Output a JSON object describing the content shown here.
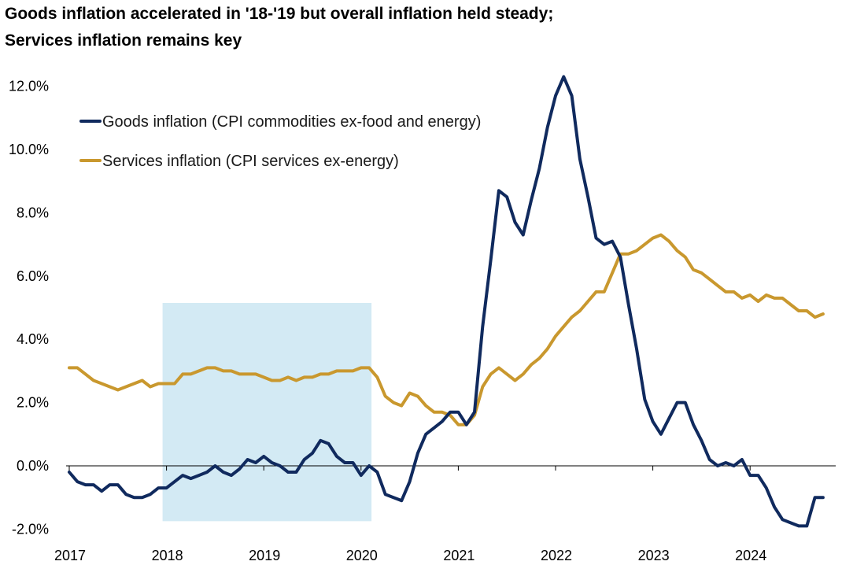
{
  "title_lines": [
    "Goods inflation accelerated in '18-'19 but overall inflation held steady;",
    "Services inflation remains key"
  ],
  "chart_data": {
    "type": "line",
    "title": "Goods inflation accelerated in '18-'19 but overall inflation held steady; Services inflation remains key",
    "xlabel": "",
    "ylabel": "",
    "x_ticks": [
      "2017",
      "2018",
      "2019",
      "2020",
      "2021",
      "2022",
      "2023",
      "2024"
    ],
    "y_ticks": [
      "12.0%",
      "10.0%",
      "8.0%",
      "6.0%",
      "4.0%",
      "2.0%",
      "0.0%",
      "-2.0%"
    ],
    "ylim": [
      -2,
      12
    ],
    "xlim": [
      "2017-01",
      "2024-10"
    ],
    "legend_position": "top-left",
    "grid": false,
    "highlight": {
      "from": "2018-01",
      "to": "2020-02",
      "ymin": -1.75,
      "ymax": 5.15,
      "color": "#d3eaf4"
    },
    "series": [
      {
        "name": "Goods inflation (CPI commodities ex-food and energy)",
        "color": "#102a5e",
        "points": [
          [
            "2017-01",
            -0.2
          ],
          [
            "2017-02",
            -0.5
          ],
          [
            "2017-03",
            -0.6
          ],
          [
            "2017-04",
            -0.6
          ],
          [
            "2017-05",
            -0.8
          ],
          [
            "2017-06",
            -0.6
          ],
          [
            "2017-07",
            -0.6
          ],
          [
            "2017-08",
            -0.9
          ],
          [
            "2017-09",
            -1.0
          ],
          [
            "2017-10",
            -1.0
          ],
          [
            "2017-11",
            -0.9
          ],
          [
            "2017-12",
            -0.7
          ],
          [
            "2018-01",
            -0.7
          ],
          [
            "2018-02",
            -0.5
          ],
          [
            "2018-03",
            -0.3
          ],
          [
            "2018-04",
            -0.4
          ],
          [
            "2018-05",
            -0.3
          ],
          [
            "2018-06",
            -0.2
          ],
          [
            "2018-07",
            0.0
          ],
          [
            "2018-08",
            -0.2
          ],
          [
            "2018-09",
            -0.3
          ],
          [
            "2018-10",
            -0.1
          ],
          [
            "2018-11",
            0.2
          ],
          [
            "2018-12",
            0.1
          ],
          [
            "2019-01",
            0.3
          ],
          [
            "2019-02",
            0.1
          ],
          [
            "2019-03",
            0.0
          ],
          [
            "2019-04",
            -0.2
          ],
          [
            "2019-05",
            -0.2
          ],
          [
            "2019-06",
            0.2
          ],
          [
            "2019-07",
            0.4
          ],
          [
            "2019-08",
            0.8
          ],
          [
            "2019-09",
            0.7
          ],
          [
            "2019-10",
            0.3
          ],
          [
            "2019-11",
            0.1
          ],
          [
            "2019-12",
            0.1
          ],
          [
            "2020-01",
            -0.3
          ],
          [
            "2020-02",
            0.0
          ],
          [
            "2020-03",
            -0.2
          ],
          [
            "2020-04",
            -0.9
          ],
          [
            "2020-05",
            -1.0
          ],
          [
            "2020-06",
            -1.1
          ],
          [
            "2020-07",
            -0.5
          ],
          [
            "2020-08",
            0.4
          ],
          [
            "2020-09",
            1.0
          ],
          [
            "2020-10",
            1.2
          ],
          [
            "2020-11",
            1.4
          ],
          [
            "2020-12",
            1.7
          ],
          [
            "2021-01",
            1.7
          ],
          [
            "2021-02",
            1.3
          ],
          [
            "2021-03",
            1.7
          ],
          [
            "2021-04",
            4.4
          ],
          [
            "2021-05",
            6.5
          ],
          [
            "2021-06",
            8.7
          ],
          [
            "2021-07",
            8.5
          ],
          [
            "2021-08",
            7.7
          ],
          [
            "2021-09",
            7.3
          ],
          [
            "2021-10",
            8.4
          ],
          [
            "2021-11",
            9.4
          ],
          [
            "2021-12",
            10.7
          ],
          [
            "2022-01",
            11.7
          ],
          [
            "2022-02",
            12.3
          ],
          [
            "2022-03",
            11.7
          ],
          [
            "2022-04",
            9.7
          ],
          [
            "2022-05",
            8.5
          ],
          [
            "2022-06",
            7.2
          ],
          [
            "2022-07",
            7.0
          ],
          [
            "2022-08",
            7.1
          ],
          [
            "2022-09",
            6.6
          ],
          [
            "2022-10",
            5.1
          ],
          [
            "2022-11",
            3.7
          ],
          [
            "2022-12",
            2.1
          ],
          [
            "2023-01",
            1.4
          ],
          [
            "2023-02",
            1.0
          ],
          [
            "2023-03",
            1.5
          ],
          [
            "2023-04",
            2.0
          ],
          [
            "2023-05",
            2.0
          ],
          [
            "2023-06",
            1.3
          ],
          [
            "2023-07",
            0.8
          ],
          [
            "2023-08",
            0.2
          ],
          [
            "2023-09",
            0.0
          ],
          [
            "2023-10",
            0.1
          ],
          [
            "2023-11",
            0.0
          ],
          [
            "2023-12",
            0.2
          ],
          [
            "2024-01",
            -0.3
          ],
          [
            "2024-02",
            -0.3
          ],
          [
            "2024-03",
            -0.7
          ],
          [
            "2024-04",
            -1.3
          ],
          [
            "2024-05",
            -1.7
          ],
          [
            "2024-06",
            -1.8
          ],
          [
            "2024-07",
            -1.9
          ],
          [
            "2024-08",
            -1.9
          ],
          [
            "2024-09",
            -1.0
          ],
          [
            "2024-10",
            -1.0
          ]
        ]
      },
      {
        "name": "Services inflation (CPI services ex-energy)",
        "color": "#c9982e",
        "points": [
          [
            "2017-01",
            3.1
          ],
          [
            "2017-02",
            3.1
          ],
          [
            "2017-03",
            2.9
          ],
          [
            "2017-04",
            2.7
          ],
          [
            "2017-05",
            2.6
          ],
          [
            "2017-06",
            2.5
          ],
          [
            "2017-07",
            2.4
          ],
          [
            "2017-08",
            2.5
          ],
          [
            "2017-09",
            2.6
          ],
          [
            "2017-10",
            2.7
          ],
          [
            "2017-11",
            2.5
          ],
          [
            "2017-12",
            2.6
          ],
          [
            "2018-01",
            2.6
          ],
          [
            "2018-02",
            2.6
          ],
          [
            "2018-03",
            2.9
          ],
          [
            "2018-04",
            2.9
          ],
          [
            "2018-05",
            3.0
          ],
          [
            "2018-06",
            3.1
          ],
          [
            "2018-07",
            3.1
          ],
          [
            "2018-08",
            3.0
          ],
          [
            "2018-09",
            3.0
          ],
          [
            "2018-10",
            2.9
          ],
          [
            "2018-11",
            2.9
          ],
          [
            "2018-12",
            2.9
          ],
          [
            "2019-01",
            2.8
          ],
          [
            "2019-02",
            2.7
          ],
          [
            "2019-03",
            2.7
          ],
          [
            "2019-04",
            2.8
          ],
          [
            "2019-05",
            2.7
          ],
          [
            "2019-06",
            2.8
          ],
          [
            "2019-07",
            2.8
          ],
          [
            "2019-08",
            2.9
          ],
          [
            "2019-09",
            2.9
          ],
          [
            "2019-10",
            3.0
          ],
          [
            "2019-11",
            3.0
          ],
          [
            "2019-12",
            3.0
          ],
          [
            "2020-01",
            3.1
          ],
          [
            "2020-02",
            3.1
          ],
          [
            "2020-03",
            2.8
          ],
          [
            "2020-04",
            2.2
          ],
          [
            "2020-05",
            2.0
          ],
          [
            "2020-06",
            1.9
          ],
          [
            "2020-07",
            2.3
          ],
          [
            "2020-08",
            2.2
          ],
          [
            "2020-09",
            1.9
          ],
          [
            "2020-10",
            1.7
          ],
          [
            "2020-11",
            1.7
          ],
          [
            "2020-12",
            1.6
          ],
          [
            "2021-01",
            1.3
          ],
          [
            "2021-02",
            1.3
          ],
          [
            "2021-03",
            1.6
          ],
          [
            "2021-04",
            2.5
          ],
          [
            "2021-05",
            2.9
          ],
          [
            "2021-06",
            3.1
          ],
          [
            "2021-07",
            2.9
          ],
          [
            "2021-08",
            2.7
          ],
          [
            "2021-09",
            2.9
          ],
          [
            "2021-10",
            3.2
          ],
          [
            "2021-11",
            3.4
          ],
          [
            "2021-12",
            3.7
          ],
          [
            "2022-01",
            4.1
          ],
          [
            "2022-02",
            4.4
          ],
          [
            "2022-03",
            4.7
          ],
          [
            "2022-04",
            4.9
          ],
          [
            "2022-05",
            5.2
          ],
          [
            "2022-06",
            5.5
          ],
          [
            "2022-07",
            5.5
          ],
          [
            "2022-08",
            6.1
          ],
          [
            "2022-09",
            6.7
          ],
          [
            "2022-10",
            6.7
          ],
          [
            "2022-11",
            6.8
          ],
          [
            "2022-12",
            7.0
          ],
          [
            "2023-01",
            7.2
          ],
          [
            "2023-02",
            7.3
          ],
          [
            "2023-03",
            7.1
          ],
          [
            "2023-04",
            6.8
          ],
          [
            "2023-05",
            6.6
          ],
          [
            "2023-06",
            6.2
          ],
          [
            "2023-07",
            6.1
          ],
          [
            "2023-08",
            5.9
          ],
          [
            "2023-09",
            5.7
          ],
          [
            "2023-10",
            5.5
          ],
          [
            "2023-11",
            5.5
          ],
          [
            "2023-12",
            5.3
          ],
          [
            "2024-01",
            5.4
          ],
          [
            "2024-02",
            5.2
          ],
          [
            "2024-03",
            5.4
          ],
          [
            "2024-04",
            5.3
          ],
          [
            "2024-05",
            5.3
          ],
          [
            "2024-06",
            5.1
          ],
          [
            "2024-07",
            4.9
          ],
          [
            "2024-08",
            4.9
          ],
          [
            "2024-09",
            4.7
          ],
          [
            "2024-10",
            4.8
          ]
        ]
      }
    ]
  }
}
